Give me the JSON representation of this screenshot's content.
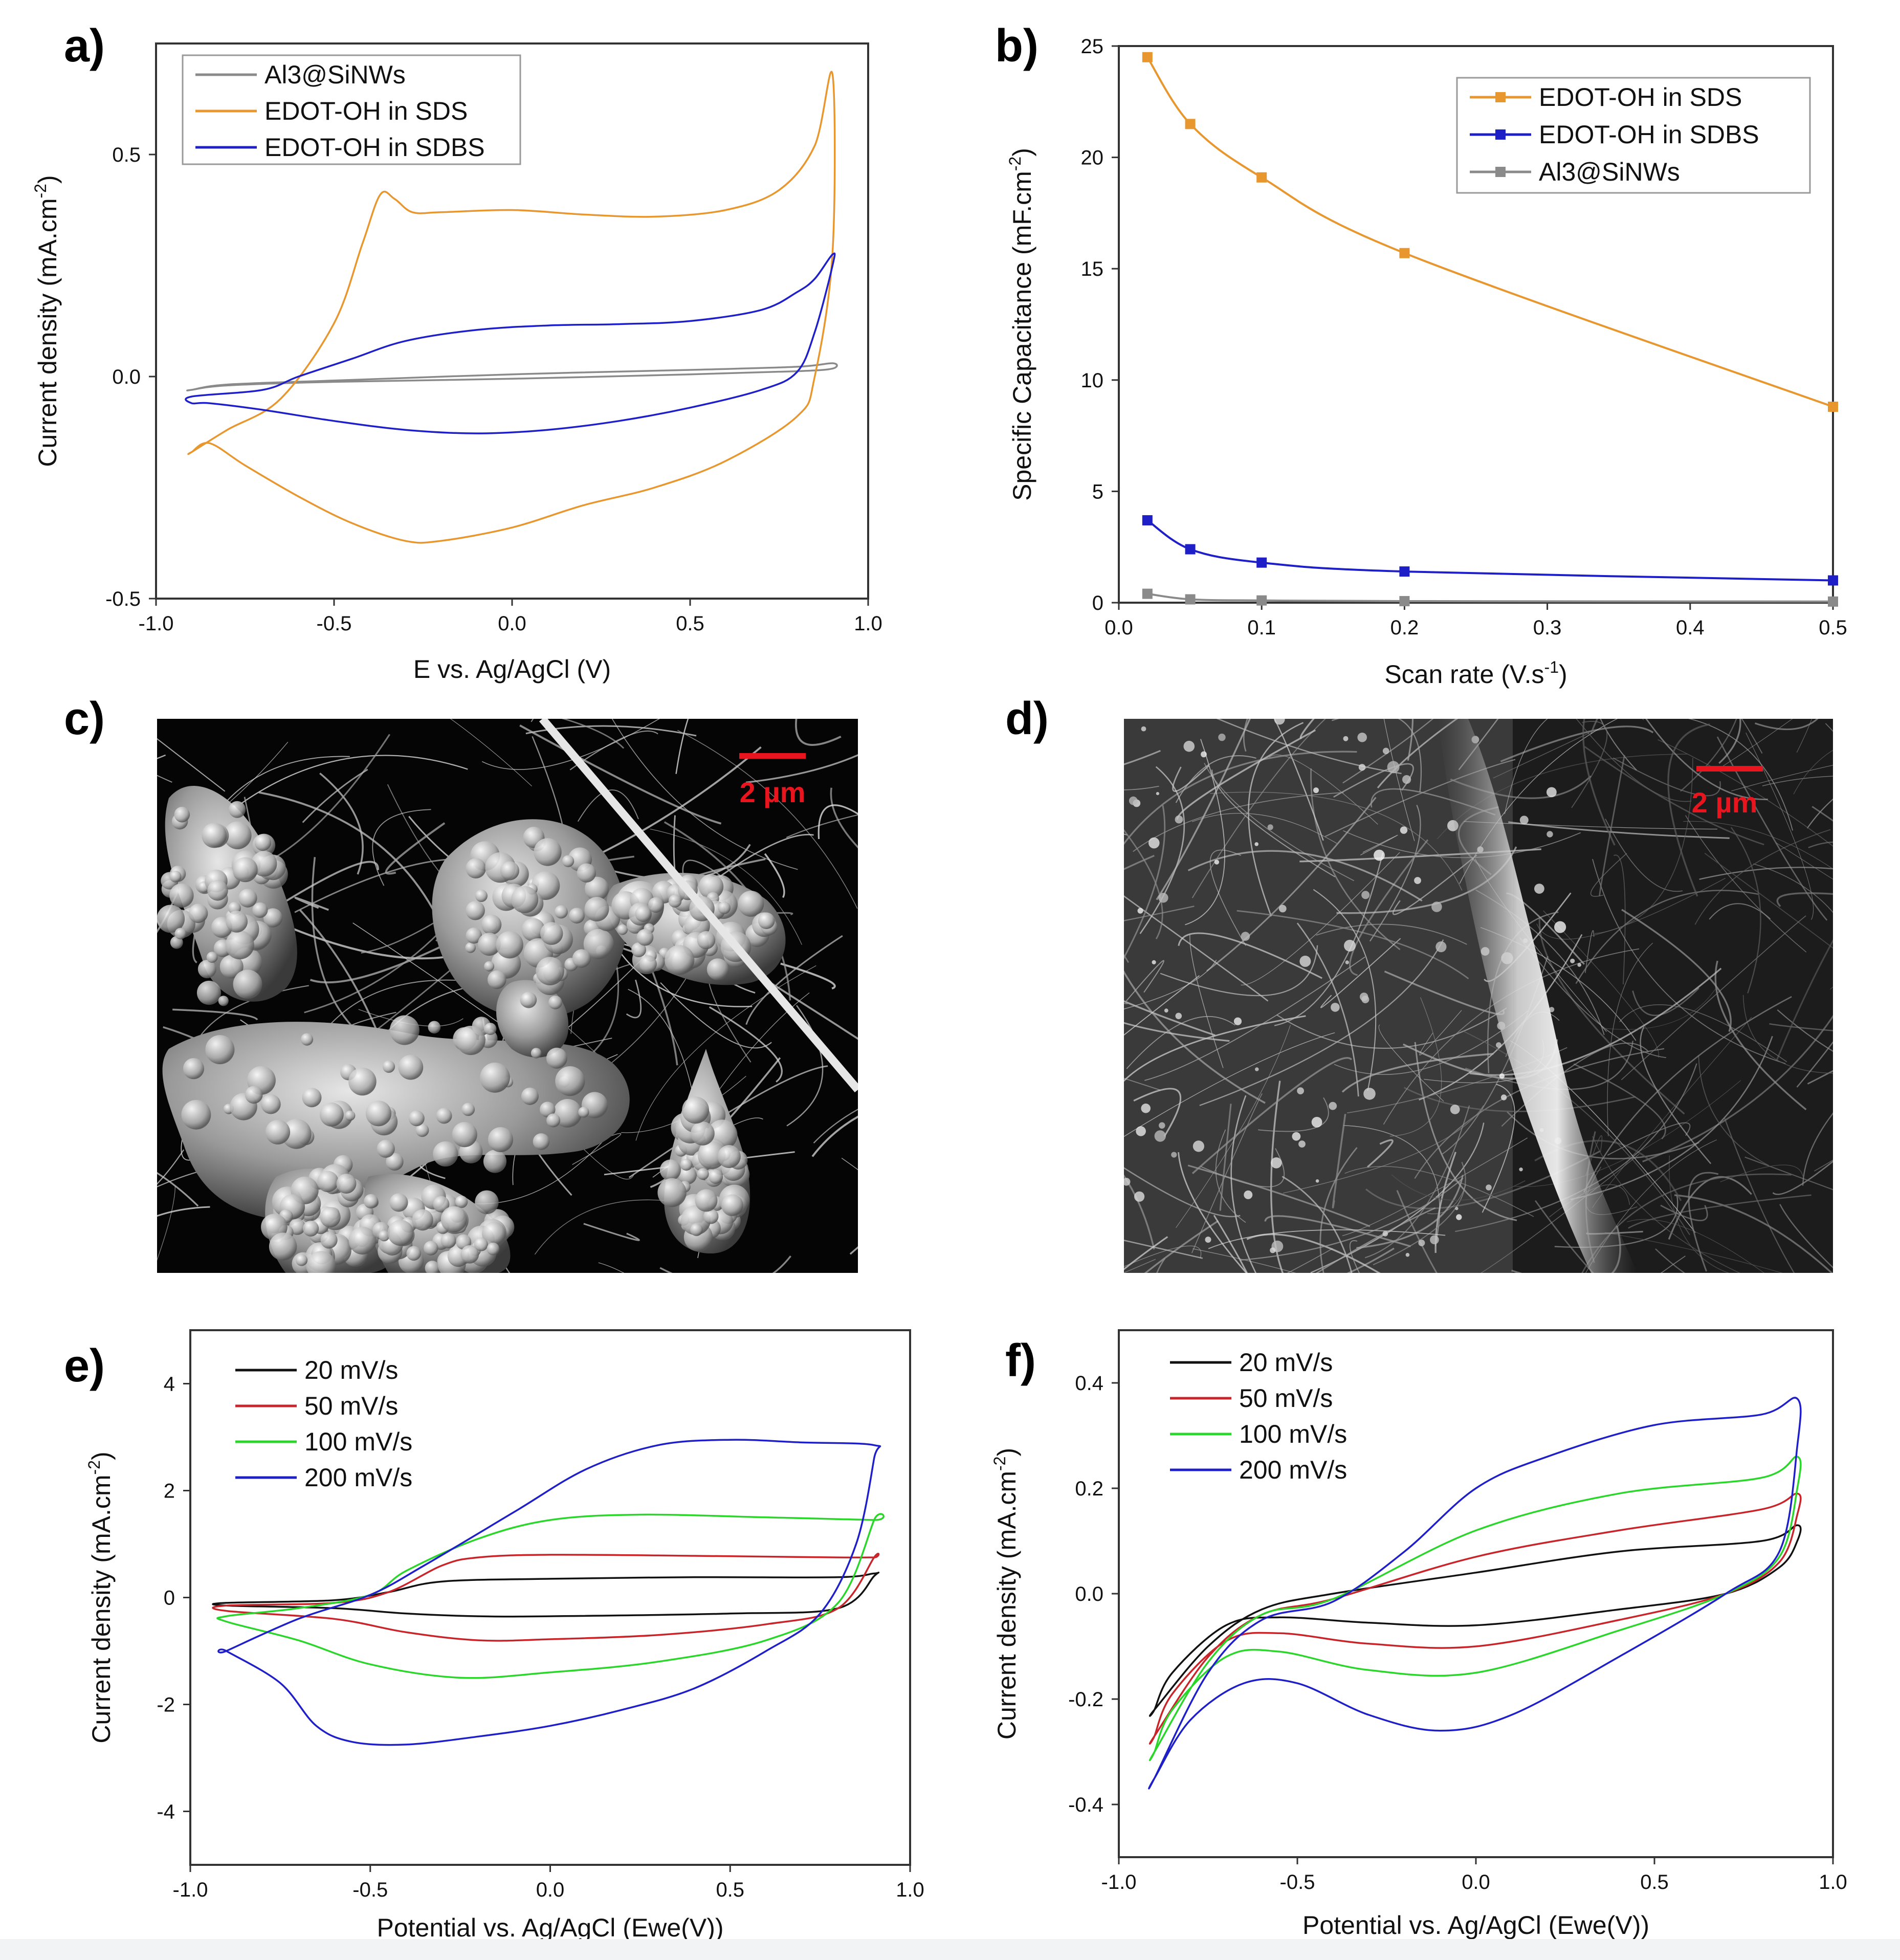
{
  "colors": {
    "orange": "#E8962E",
    "blue": "#1F1FC8",
    "gray": "#8A8A8A",
    "black": "#111111",
    "red": "#C8252B",
    "green": "#2BD62B",
    "scalebar": "#E8141E"
  },
  "chart_data": [
    {
      "panel": "a)",
      "type": "line",
      "xlabel": "E vs. Ag/AgCl (V)",
      "ylabel": "Current density (mA.cm",
      "ylabel_sup": "-2",
      "ylabel_end": ")",
      "xlim": [
        -1.0,
        1.0
      ],
      "ylim": [
        -0.5,
        0.75
      ],
      "xticks": [
        -1.0,
        -0.5,
        0.0,
        0.5,
        1.0
      ],
      "xtick_labels": [
        "-1.0",
        "-0.5",
        "0.0",
        "0.5",
        "1.0"
      ],
      "yticks": [
        -0.5,
        0.0,
        0.5
      ],
      "ytick_labels": [
        "-0.5",
        "0.0",
        "0.5"
      ],
      "legend_position": "top-left",
      "series": [
        {
          "name": "Al3@SiNWs",
          "color": "#8A8A8A",
          "closed": true,
          "x": [
            -0.9,
            -0.8,
            -0.5,
            0,
            0.5,
            0.8,
            0.9,
            0.9,
            0.8,
            0.5,
            0,
            -0.5,
            -0.8,
            -0.9
          ],
          "y": [
            -0.03,
            -0.018,
            -0.009,
            0.005,
            0.015,
            0.022,
            0.03,
            0.018,
            0.012,
            0.005,
            -0.005,
            -0.012,
            -0.02,
            -0.03
          ]
        },
        {
          "name": "EDOT-OH in SDS",
          "color": "#E8962E",
          "closed": true,
          "x": [
            -0.9,
            -0.8,
            -0.65,
            -0.5,
            -0.42,
            -0.37,
            -0.33,
            -0.28,
            -0.2,
            0,
            0.2,
            0.4,
            0.6,
            0.75,
            0.85,
            0.9,
            0.9,
            0.85,
            0.8,
            0.6,
            0.4,
            0.2,
            0,
            -0.2,
            -0.3,
            -0.45,
            -0.6,
            -0.75,
            -0.85,
            -0.9
          ],
          "y": [
            -0.17,
            -0.12,
            -0.05,
            0.12,
            0.3,
            0.41,
            0.4,
            0.37,
            0.37,
            0.375,
            0.365,
            0.36,
            0.375,
            0.42,
            0.52,
            0.68,
            0.28,
            0.0,
            -0.09,
            -0.19,
            -0.25,
            -0.29,
            -0.34,
            -0.37,
            -0.37,
            -0.33,
            -0.27,
            -0.2,
            -0.15,
            -0.17
          ]
        },
        {
          "name": "EDOT-OH in SDBS",
          "color": "#1F1FC8",
          "closed": true,
          "x": [
            -0.9,
            -0.7,
            -0.6,
            -0.45,
            -0.3,
            -0.1,
            0.1,
            0.3,
            0.5,
            0.7,
            0.8,
            0.85,
            0.9,
            0.9,
            0.85,
            0.8,
            0.7,
            0.5,
            0.3,
            0.1,
            -0.1,
            -0.3,
            -0.5,
            -0.7,
            -0.85,
            -0.9
          ],
          "y": [
            -0.045,
            -0.03,
            0.0,
            0.04,
            0.08,
            0.105,
            0.115,
            0.118,
            0.125,
            0.15,
            0.19,
            0.22,
            0.275,
            0.25,
            0.1,
            0.01,
            -0.03,
            -0.07,
            -0.1,
            -0.12,
            -0.128,
            -0.12,
            -0.1,
            -0.075,
            -0.06,
            -0.06
          ]
        }
      ]
    },
    {
      "panel": "b)",
      "type": "line",
      "xlabel": "Scan rate (V.s",
      "xlabel_sup": "-1",
      "xlabel_end": ")",
      "ylabel": "Specific Capacitance (mF.cm",
      "ylabel_sup": "-2",
      "ylabel_end": ")",
      "xlim": [
        0.0,
        0.5
      ],
      "ylim": [
        0,
        25
      ],
      "xticks": [
        0.0,
        0.1,
        0.2,
        0.3,
        0.4,
        0.5
      ],
      "xtick_labels": [
        "0.0",
        "0.1",
        "0.2",
        "0.3",
        "0.4",
        "0.5"
      ],
      "yticks": [
        0,
        5,
        10,
        15,
        20,
        25
      ],
      "ytick_labels": [
        "0",
        "5",
        "10",
        "15",
        "20",
        "25"
      ],
      "legend_position": "top-right",
      "series": [
        {
          "name": "EDOT-OH in SDS",
          "color": "#E8962E",
          "x": [
            0.02,
            0.05,
            0.1,
            0.2,
            0.5
          ],
          "y": [
            24.5,
            21.5,
            19.1,
            15.7,
            8.8
          ]
        },
        {
          "name": "EDOT-OH in SDBS",
          "color": "#1F1FC8",
          "x": [
            0.02,
            0.05,
            0.1,
            0.2,
            0.5
          ],
          "y": [
            3.7,
            2.4,
            1.8,
            1.4,
            1.0
          ]
        },
        {
          "name": "Al3@SiNWs",
          "color": "#8A8A8A",
          "x": [
            0.02,
            0.05,
            0.1,
            0.2,
            0.5
          ],
          "y": [
            0.4,
            0.15,
            0.1,
            0.07,
            0.05
          ]
        }
      ]
    },
    {
      "panel": "e)",
      "type": "line",
      "xlabel": "Potential vs. Ag/AgCl (Ewe(V))",
      "ylabel": "Current density (mA.cm",
      "ylabel_sup": "-2",
      "ylabel_end": ")",
      "xlim": [
        -1.0,
        1.0
      ],
      "ylim": [
        -5,
        5
      ],
      "xticks": [
        -1.0,
        -0.5,
        0.0,
        0.5,
        1.0
      ],
      "xtick_labels": [
        "-1.0",
        "-0.5",
        "0.0",
        "0.5",
        "1.0"
      ],
      "yticks": [
        -4,
        -2,
        0,
        2,
        4
      ],
      "ytick_labels": [
        "-4",
        "-2",
        "0",
        "2",
        "4"
      ],
      "legend_position": "top-left",
      "series": [
        {
          "name": "20 mV/s",
          "color": "#111111",
          "closed": true,
          "x": [
            -0.9,
            -0.6,
            -0.45,
            -0.3,
            0,
            0.4,
            0.8,
            0.9,
            0.9,
            0.8,
            0.5,
            0,
            -0.2,
            -0.4,
            -0.6,
            -0.9
          ],
          "y": [
            -0.1,
            -0.05,
            0.1,
            0.3,
            0.35,
            0.38,
            0.38,
            0.45,
            0.4,
            -0.2,
            -0.3,
            -0.35,
            -0.35,
            -0.3,
            -0.2,
            -0.15
          ]
        },
        {
          "name": "50 mV/s",
          "color": "#C8252B",
          "closed": true,
          "x": [
            -0.9,
            -0.6,
            -0.45,
            -0.3,
            -0.2,
            0,
            0.4,
            0.8,
            0.9,
            0.9,
            0.8,
            0.6,
            0.3,
            0,
            -0.2,
            -0.4,
            -0.6,
            -0.9
          ],
          "y": [
            -0.15,
            -0.1,
            0.1,
            0.6,
            0.75,
            0.8,
            0.78,
            0.75,
            0.75,
            0.75,
            -0.2,
            -0.5,
            -0.7,
            -0.78,
            -0.8,
            -0.65,
            -0.4,
            -0.25
          ]
        },
        {
          "name": "100 mV/s",
          "color": "#2BD62B",
          "closed": true,
          "x": [
            -0.9,
            -0.7,
            -0.5,
            -0.4,
            -0.2,
            0,
            0.25,
            0.6,
            0.9,
            0.9,
            0.8,
            0.6,
            0.3,
            0,
            -0.25,
            -0.5,
            -0.7,
            -0.9
          ],
          "y": [
            -0.35,
            -0.2,
            0.05,
            0.5,
            1.1,
            1.45,
            1.55,
            1.5,
            1.45,
            1.45,
            -0.1,
            -0.8,
            -1.2,
            -1.4,
            -1.5,
            -1.25,
            -0.8,
            -0.45
          ]
        },
        {
          "name": "200 mV/s",
          "color": "#1F1FC8",
          "closed": true,
          "x": [
            -0.9,
            -0.7,
            -0.5,
            -0.35,
            -0.1,
            0.1,
            0.3,
            0.5,
            0.7,
            0.9,
            0.9,
            0.85,
            0.75,
            0.6,
            0.4,
            0.2,
            0,
            -0.2,
            -0.4,
            -0.55,
            -0.65,
            -0.75,
            -0.9
          ],
          "y": [
            -1.0,
            -0.4,
            0.05,
            0.6,
            1.6,
            2.4,
            2.85,
            2.95,
            2.9,
            2.85,
            2.6,
            1.0,
            -0.3,
            -1.0,
            -1.7,
            -2.1,
            -2.4,
            -2.6,
            -2.75,
            -2.7,
            -2.4,
            -1.6,
            -1.0
          ]
        }
      ]
    },
    {
      "panel": "f)",
      "type": "line",
      "xlabel": "Potential vs. Ag/AgCl (Ewe(V))",
      "ylabel": "Current density (mA.cm",
      "ylabel_sup": "-2",
      "ylabel_end": ")",
      "xlim": [
        -1.0,
        1.0
      ],
      "ylim": [
        -0.5,
        0.5
      ],
      "xticks": [
        -1.0,
        -0.5,
        0.0,
        0.5,
        1.0
      ],
      "xtick_labels": [
        "-1.0",
        "-0.5",
        "0.0",
        "0.5",
        "1.0"
      ],
      "yticks": [
        -0.4,
        -0.2,
        0.0,
        0.2,
        0.4
      ],
      "ytick_labels": [
        "-0.4",
        "-0.2",
        "0.0",
        "0.2",
        "0.4"
      ],
      "legend_position": "top-left",
      "series": [
        {
          "name": "20 mV/s",
          "color": "#111111",
          "closed": true,
          "x": [
            -0.9,
            -0.75,
            -0.6,
            -0.4,
            0,
            0.4,
            0.8,
            0.9,
            0.9,
            0.85,
            0.7,
            0.4,
            0,
            -0.3,
            -0.55,
            -0.7,
            -0.85,
            -0.9
          ],
          "y": [
            -0.22,
            -0.1,
            -0.03,
            0.0,
            0.04,
            0.08,
            0.1,
            0.13,
            0.1,
            0.05,
            0.0,
            -0.03,
            -0.06,
            -0.055,
            -0.045,
            -0.06,
            -0.15,
            -0.22
          ]
        },
        {
          "name": "50 mV/s",
          "color": "#C8252B",
          "closed": true,
          "x": [
            -0.9,
            -0.75,
            -0.6,
            -0.4,
            0,
            0.4,
            0.8,
            0.9,
            0.9,
            0.85,
            0.7,
            0.4,
            0,
            -0.3,
            -0.55,
            -0.7,
            -0.85,
            -0.9
          ],
          "y": [
            -0.27,
            -0.12,
            -0.04,
            -0.01,
            0.07,
            0.12,
            0.16,
            0.19,
            0.15,
            0.06,
            0.0,
            -0.05,
            -0.1,
            -0.095,
            -0.075,
            -0.09,
            -0.19,
            -0.27
          ]
        },
        {
          "name": "100 mV/s",
          "color": "#2BD62B",
          "closed": true,
          "x": [
            -0.9,
            -0.75,
            -0.6,
            -0.4,
            0,
            0.4,
            0.8,
            0.9,
            0.9,
            0.85,
            0.7,
            0.4,
            0,
            -0.3,
            -0.55,
            -0.7,
            -0.85,
            -0.9
          ],
          "y": [
            -0.3,
            -0.13,
            -0.04,
            -0.01,
            0.12,
            0.19,
            0.22,
            0.26,
            0.2,
            0.07,
            0.0,
            -0.07,
            -0.15,
            -0.145,
            -0.11,
            -0.12,
            -0.22,
            -0.3
          ]
        },
        {
          "name": "200 mV/s",
          "color": "#1F1FC8",
          "closed": true,
          "x": [
            -0.9,
            -0.75,
            -0.6,
            -0.4,
            -0.2,
            0,
            0.2,
            0.5,
            0.8,
            0.9,
            0.9,
            0.85,
            0.7,
            0.4,
            0.1,
            -0.1,
            -0.3,
            -0.5,
            -0.65,
            -0.8,
            -0.9
          ],
          "y": [
            -0.35,
            -0.15,
            -0.05,
            -0.015,
            0.08,
            0.2,
            0.26,
            0.32,
            0.34,
            0.37,
            0.28,
            0.08,
            0.0,
            -0.12,
            -0.23,
            -0.26,
            -0.23,
            -0.17,
            -0.17,
            -0.24,
            -0.35
          ]
        }
      ]
    }
  ],
  "panels": {
    "c": {
      "label": "c)",
      "scalebar_text": "2 µm",
      "description_icon": "sem-micrograph"
    },
    "d": {
      "label": "d)",
      "scalebar_text": "2 µm",
      "description_icon": "sem-micrograph"
    }
  }
}
